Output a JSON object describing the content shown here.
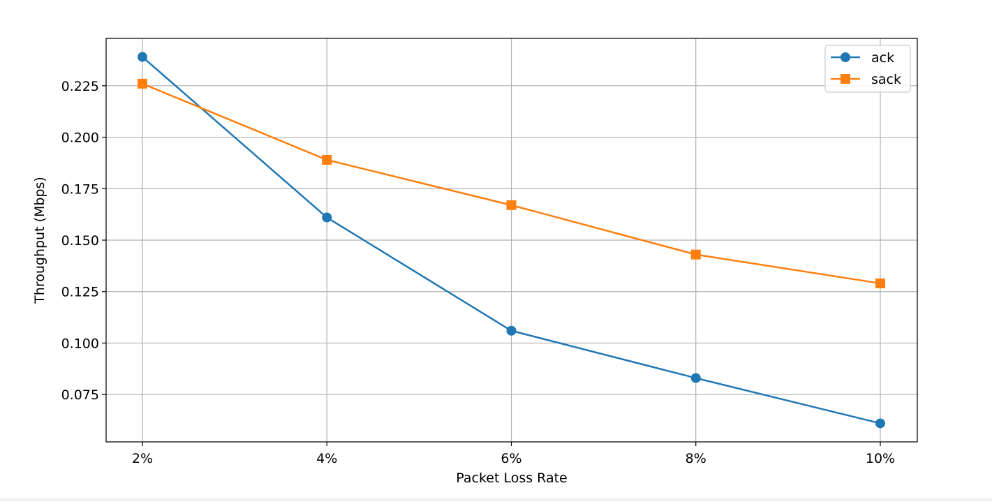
{
  "chart_data": {
    "type": "line",
    "title": "",
    "xlabel": "Packet Loss Rate",
    "ylabel": "Throughput (Mbps)",
    "categories": [
      "2%",
      "4%",
      "6%",
      "8%",
      "10%"
    ],
    "yticks": [
      0.075,
      0.1,
      0.125,
      0.15,
      0.175,
      0.2,
      0.225
    ],
    "ytick_labels": [
      "0.075",
      "0.100",
      "0.125",
      "0.150",
      "0.175",
      "0.200",
      "0.225"
    ],
    "ylim": [
      0.052,
      0.248
    ],
    "grid": true,
    "legend_position": "top-right",
    "series": [
      {
        "name": "ack",
        "color": "#1f77b4",
        "marker": "circle",
        "values": [
          0.239,
          0.161,
          0.106,
          0.083,
          0.061
        ]
      },
      {
        "name": "sack",
        "color": "#ff7f0e",
        "marker": "square",
        "values": [
          0.226,
          0.189,
          0.167,
          0.143,
          0.129
        ]
      }
    ]
  }
}
